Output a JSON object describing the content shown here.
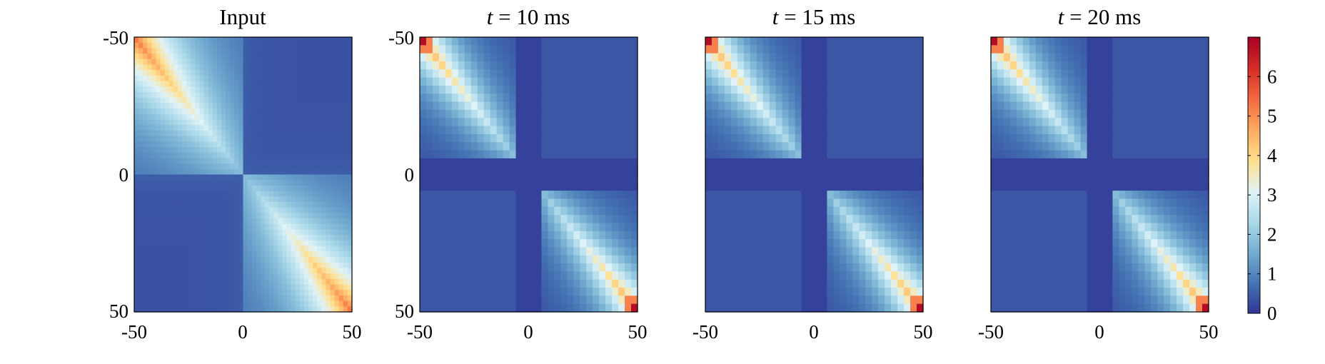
{
  "chart_data": [
    {
      "type": "heatmap",
      "title": "Input",
      "x_ticks": [
        "-50",
        "0",
        "50"
      ],
      "y_ticks": [
        "-50",
        "0",
        "50"
      ],
      "x_range": [
        -50,
        50
      ],
      "y_range": [
        -50,
        50
      ],
      "y_axis_direction": "top-to-bottom",
      "show_y_ticks": true,
      "pattern": "diagonal correlation in the top-left and bottom-right quadrants, peaking near ~4.5 at both ends and fading to ~0 in off-diagonal quadrants",
      "max_value": 4.6,
      "min_value": 0
    },
    {
      "type": "heatmap",
      "title_italic": "t",
      "title_rest": " = 10 ms",
      "x_ticks": [
        "-50",
        "0",
        "50"
      ],
      "y_ticks": [
        "-50",
        "0",
        "50"
      ],
      "x_range": [
        -50,
        50
      ],
      "y_range": [
        -50,
        50
      ],
      "show_y_ticks": true,
      "pattern": "pixelated diagonal blocks, peak ~7 at the corners (-50,-50) and (50,50)",
      "max_value": 7,
      "min_value": 0
    },
    {
      "type": "heatmap",
      "title_italic": "t",
      "title_rest": " = 15 ms",
      "x_ticks": [
        "-50",
        "0",
        "50"
      ],
      "x_range": [
        -50,
        50
      ],
      "y_range": [
        -50,
        50
      ],
      "show_y_ticks": false,
      "max_value": 7,
      "min_value": 0
    },
    {
      "type": "heatmap",
      "title_italic": "t",
      "title_rest": " = 20 ms",
      "x_ticks": [
        "-50",
        "0",
        "50"
      ],
      "x_range": [
        -50,
        50
      ],
      "y_range": [
        -50,
        50
      ],
      "show_y_ticks": false,
      "max_value": 7,
      "min_value": 0
    }
  ],
  "colorbar": {
    "range": [
      0,
      7
    ],
    "ticks": [
      "0",
      "1",
      "2",
      "3",
      "4",
      "5",
      "6"
    ],
    "colormap": "RdYlBu (reversed)",
    "colors": [
      "#313695",
      "#4575b4",
      "#74add1",
      "#abd9e9",
      "#e0f3f8",
      "#fee090",
      "#fdae61",
      "#f46d43",
      "#d73027",
      "#a50026"
    ]
  }
}
